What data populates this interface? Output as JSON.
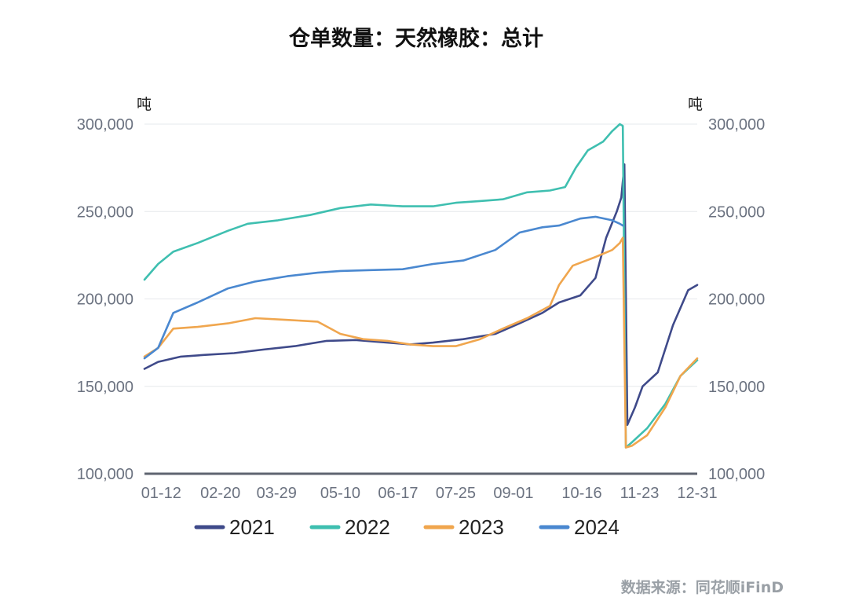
{
  "chart_data": {
    "type": "line",
    "title": "仓单数量：天然橡胶：总计",
    "unit_left": "吨",
    "unit_right": "吨",
    "ylim": [
      100000,
      300000
    ],
    "yticks": [
      100000,
      150000,
      200000,
      250000,
      300000
    ],
    "ytick_labels": [
      "100,000",
      "150,000",
      "200,000",
      "250,000",
      "300,000"
    ],
    "xlim": [
      "01-01",
      "12-31"
    ],
    "xticks": [
      "01-12",
      "02-20",
      "03-29",
      "05-10",
      "06-17",
      "07-25",
      "09-01",
      "10-16",
      "11-23",
      "12-31"
    ],
    "grid": true,
    "legend_position": "bottom",
    "series": [
      {
        "name": "2021",
        "color": "#3f4a8a",
        "x": [
          "01-01",
          "01-10",
          "01-25",
          "02-10",
          "03-01",
          "03-20",
          "04-10",
          "05-01",
          "05-20",
          "06-10",
          "06-25",
          "07-10",
          "07-30",
          "08-20",
          "09-05",
          "09-20",
          "10-01",
          "10-15",
          "10-25",
          "11-01",
          "11-08",
          "11-11",
          "11-13",
          "11-15",
          "11-20",
          "11-25",
          "12-05",
          "12-15",
          "12-25",
          "12-31"
        ],
        "y": [
          160000,
          164000,
          167000,
          168000,
          169000,
          171000,
          173000,
          176000,
          176500,
          175000,
          174000,
          175000,
          177000,
          180000,
          186000,
          192000,
          198000,
          202000,
          212000,
          235000,
          250000,
          258000,
          277000,
          128000,
          138000,
          150000,
          158000,
          185000,
          205000,
          208000
        ]
      },
      {
        "name": "2022",
        "color": "#3fbfb0",
        "x": [
          "01-01",
          "01-10",
          "01-20",
          "02-05",
          "02-25",
          "03-10",
          "03-30",
          "04-20",
          "05-10",
          "05-30",
          "06-20",
          "07-10",
          "07-25",
          "08-10",
          "08-25",
          "09-10",
          "09-25",
          "10-05",
          "10-12",
          "10-20",
          "10-30",
          "11-05",
          "11-10",
          "11-12",
          "11-14",
          "11-18",
          "11-28",
          "12-10",
          "12-20",
          "12-31"
        ],
        "y": [
          211000,
          220000,
          227000,
          232000,
          239000,
          243000,
          245000,
          248000,
          252000,
          254000,
          253000,
          253000,
          255000,
          256000,
          257000,
          261000,
          262000,
          264000,
          275000,
          285000,
          290000,
          296000,
          300000,
          299000,
          115000,
          118000,
          126000,
          140000,
          156000,
          165000
        ]
      },
      {
        "name": "2023",
        "color": "#f0a64e",
        "x": [
          "01-01",
          "01-10",
          "01-20",
          "02-05",
          "02-25",
          "03-15",
          "04-05",
          "04-25",
          "05-10",
          "05-25",
          "06-10",
          "06-25",
          "07-10",
          "07-25",
          "08-10",
          "08-25",
          "09-10",
          "09-25",
          "10-01",
          "10-10",
          "10-25",
          "11-05",
          "11-10",
          "11-12",
          "11-14",
          "11-18",
          "11-28",
          "12-10",
          "12-20",
          "12-31"
        ],
        "y": [
          167000,
          172000,
          183000,
          184000,
          186000,
          189000,
          188000,
          187000,
          180000,
          177000,
          176000,
          174000,
          173000,
          173000,
          177000,
          183000,
          189000,
          196000,
          208000,
          219000,
          224000,
          228000,
          232000,
          235000,
          115000,
          116000,
          122000,
          138000,
          156000,
          166000
        ]
      },
      {
        "name": "2024",
        "color": "#4a88d0",
        "x": [
          "01-01",
          "01-10",
          "01-20",
          "02-05",
          "02-25",
          "03-15",
          "04-05",
          "04-25",
          "05-10",
          "05-30",
          "06-20",
          "07-10",
          "07-30",
          "08-20",
          "09-05",
          "09-20",
          "10-01",
          "10-15",
          "10-25",
          "11-05",
          "11-10",
          "11-12"
        ],
        "y": [
          166000,
          172000,
          192000,
          198000,
          206000,
          210000,
          213000,
          215000,
          216000,
          216500,
          217000,
          220000,
          222000,
          228000,
          238000,
          241000,
          242000,
          246000,
          247000,
          245000,
          243000,
          242000
        ]
      }
    ]
  },
  "source_label": "数据来源：同花顺iFinD"
}
